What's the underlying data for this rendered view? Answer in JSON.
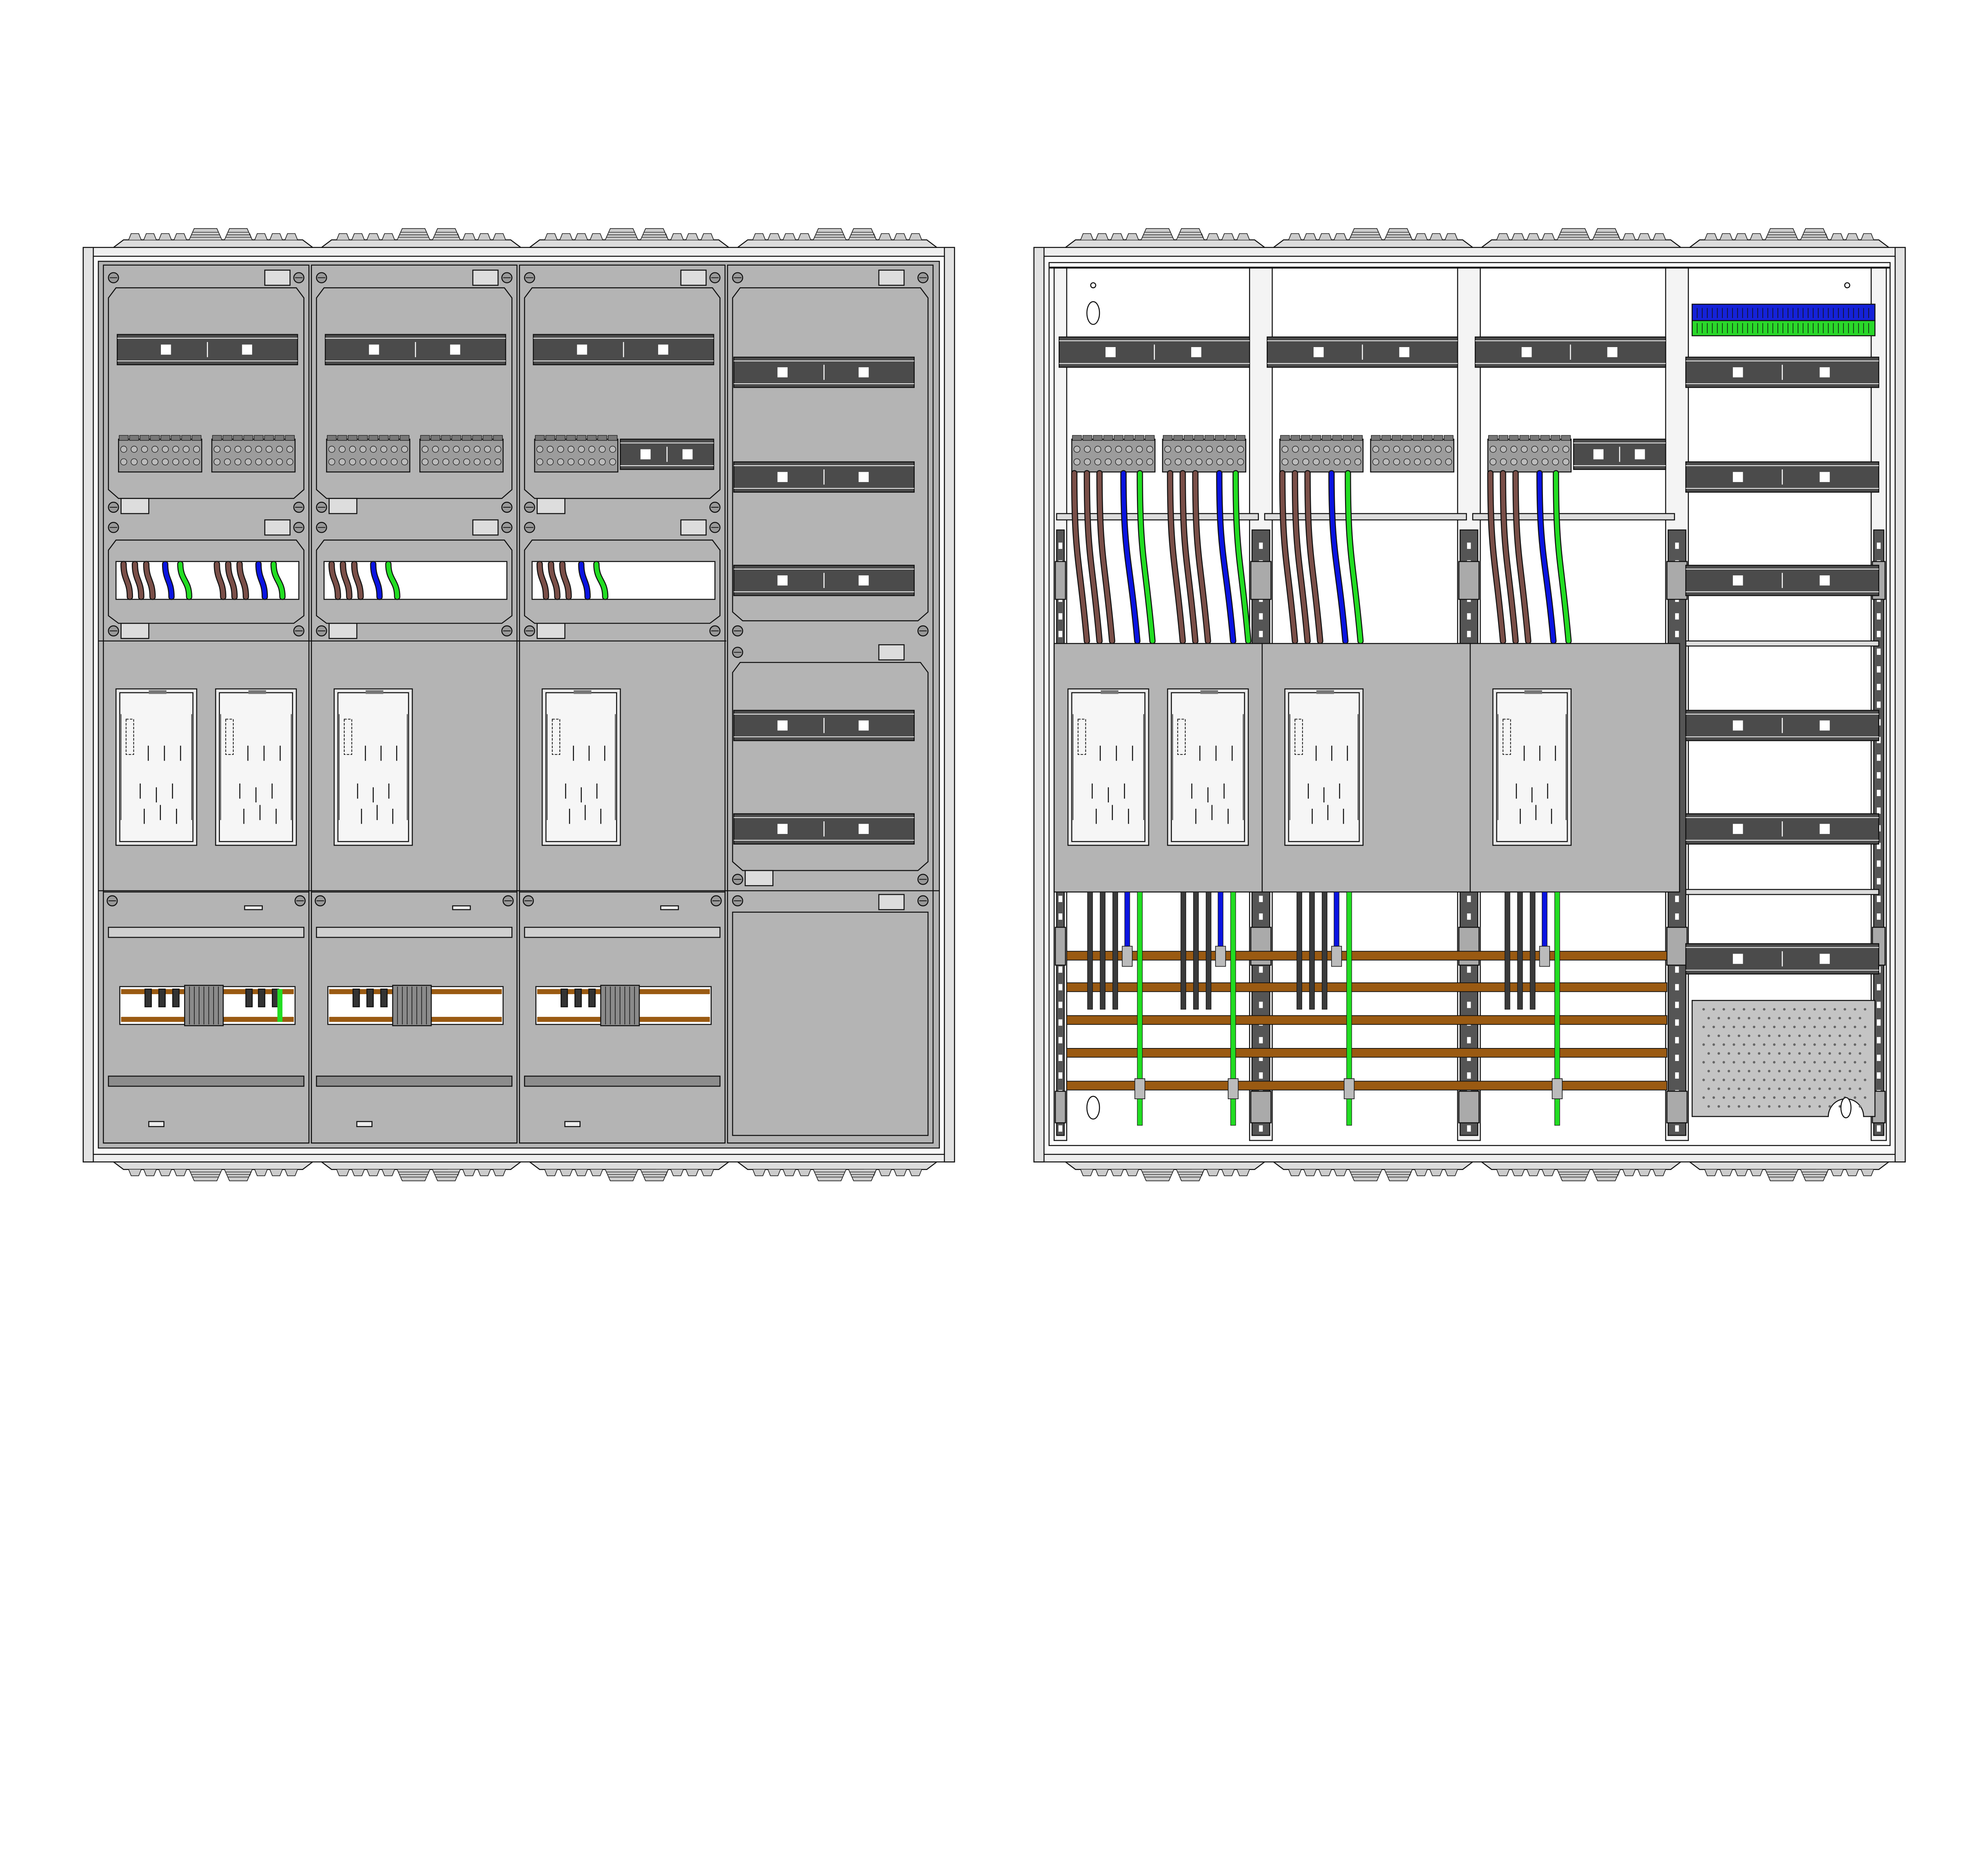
{
  "drawing": {
    "views": [
      "front-closed",
      "front-open"
    ],
    "columns_per_cabinet": 4,
    "colors": {
      "panel_gray": "#b4b4b4",
      "rail_dark": "#4b4b4b",
      "frame_light": "#efefef",
      "interior_white": "#ffffff",
      "wire_brown": "#7a4f48",
      "wire_blue": "#0a14e0",
      "wire_green": "#22dd22",
      "busbar_copper": "#9a5a12",
      "terminal_blue": "#1522d8",
      "terminal_green": "#2ad82a",
      "outline": "#111111"
    }
  }
}
